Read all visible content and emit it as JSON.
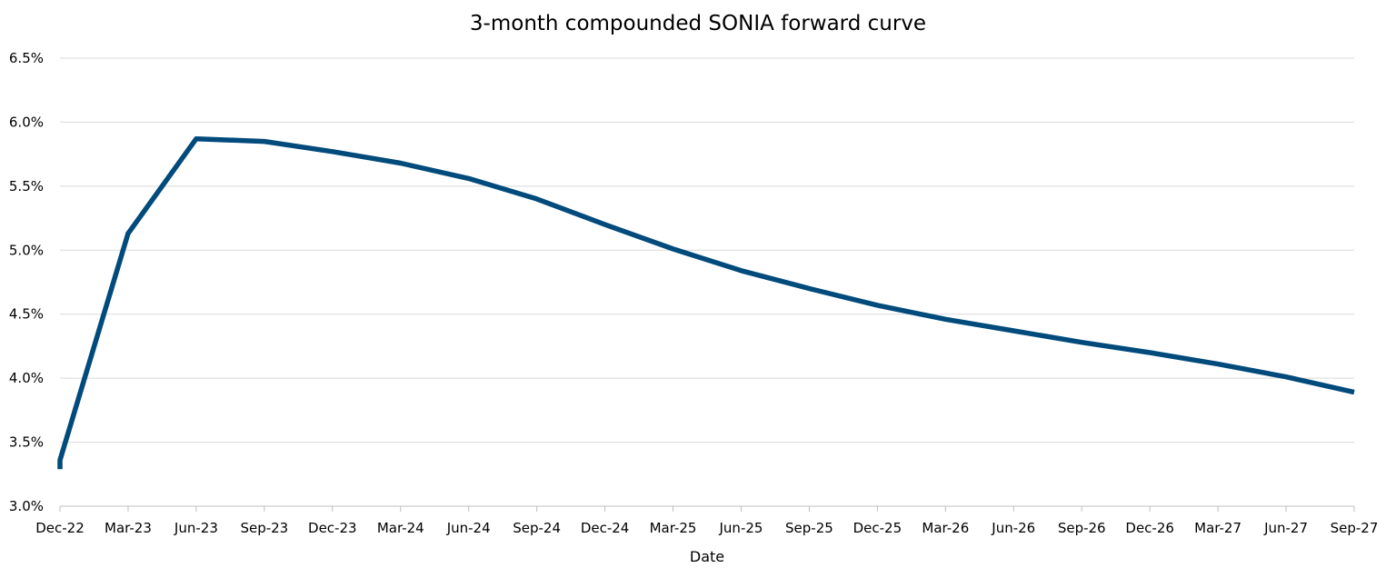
{
  "chart_data": {
    "type": "line",
    "title": "3-month compounded SONIA forward curve",
    "xlabel": "Date",
    "ylabel": "",
    "ylim": [
      0.03,
      0.065
    ],
    "yticks": [
      0.03,
      0.035,
      0.04,
      0.045,
      0.05,
      0.055,
      0.06,
      0.065
    ],
    "ytick_labels": [
      "3.0%",
      "3.5%",
      "4.0%",
      "4.5%",
      "5.0%",
      "5.5%",
      "6.0%",
      "6.5%"
    ],
    "y_format": "percent",
    "grid": true,
    "legend": "none",
    "line_color": "#004a7c",
    "categories": [
      "Dec-22",
      "Mar-23",
      "Jun-23",
      "Sep-23",
      "Dec-23",
      "Mar-24",
      "Jun-24",
      "Sep-24",
      "Dec-24",
      "Mar-25",
      "Jun-25",
      "Sep-25",
      "Dec-25",
      "Mar-26",
      "Jun-26",
      "Sep-26",
      "Dec-26",
      "Mar-27",
      "Jun-27",
      "Sep-27"
    ],
    "series": [
      {
        "name": "",
        "points": [
          {
            "x": "Dec-22",
            "y": 0.0329
          },
          {
            "x": "Dec-22",
            "y": 0.0336
          },
          {
            "x": "Mar-23",
            "y": 0.0513
          },
          {
            "x": "Jun-23",
            "y": 0.0587
          },
          {
            "x": "Sep-23",
            "y": 0.0585
          },
          {
            "x": "Dec-23",
            "y": 0.0577
          },
          {
            "x": "Mar-24",
            "y": 0.0568
          },
          {
            "x": "Jun-24",
            "y": 0.0556
          },
          {
            "x": "Sep-24",
            "y": 0.054
          },
          {
            "x": "Dec-24",
            "y": 0.052
          },
          {
            "x": "Mar-25",
            "y": 0.0501
          },
          {
            "x": "Jun-25",
            "y": 0.0484
          },
          {
            "x": "Sep-25",
            "y": 0.047
          },
          {
            "x": "Dec-25",
            "y": 0.0457
          },
          {
            "x": "Mar-26",
            "y": 0.0446
          },
          {
            "x": "Jun-26",
            "y": 0.0437
          },
          {
            "x": "Sep-26",
            "y": 0.0428
          },
          {
            "x": "Dec-26",
            "y": 0.042
          },
          {
            "x": "Mar-27",
            "y": 0.0411
          },
          {
            "x": "Jun-27",
            "y": 0.0401
          },
          {
            "x": "Sep-27",
            "y": 0.0389
          }
        ]
      }
    ]
  }
}
